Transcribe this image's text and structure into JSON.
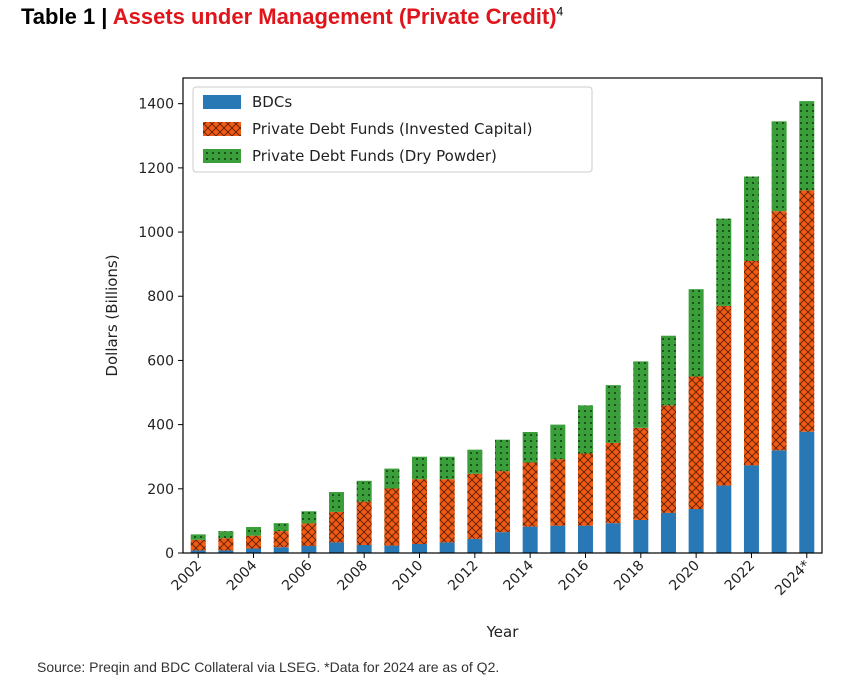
{
  "header": {
    "prefix": "Table 1 | ",
    "title": "Assets under Management (Private Credit)",
    "footnote_mark": "4"
  },
  "source_note": "Source: Preqin and BDC Collateral via LSEG. *Data for 2024 are as of Q2.",
  "colors": {
    "title_accent": "#e0151b",
    "bdcs": "#2878b5",
    "invested": "#f05a14",
    "dry_powder": "#3a9e3a"
  },
  "chart_data": {
    "type": "bar",
    "stacked": true,
    "xlabel": "Year",
    "ylabel": "Dollars (Billions)",
    "ylim": [
      0,
      1480
    ],
    "yticks": [
      0,
      200,
      400,
      600,
      800,
      1000,
      1200,
      1400
    ],
    "categories": [
      "2002",
      "2003",
      "2004",
      "2005",
      "2006",
      "2007",
      "2008",
      "2009",
      "2010",
      "2011",
      "2012",
      "2013",
      "2014",
      "2015",
      "2016",
      "2017",
      "2018",
      "2019",
      "2020",
      "2021",
      "2022",
      "2023",
      "2024*"
    ],
    "xtick_labels": [
      "2002",
      "2004",
      "2006",
      "2008",
      "2010",
      "2012",
      "2014",
      "2016",
      "2018",
      "2020",
      "2022",
      "2024*"
    ],
    "legend_position": "top-left",
    "grid": false,
    "series": [
      {
        "name": "BDCs",
        "pattern": "solid",
        "values": [
          8,
          8,
          14,
          18,
          22,
          33,
          25,
          23,
          28,
          33,
          44,
          65,
          82,
          85,
          85,
          93,
          103,
          125,
          137,
          210,
          273,
          320,
          378
        ]
      },
      {
        "name": "Private Debt Funds (Invested Capital)",
        "pattern": "crosshatch",
        "values": [
          33,
          38,
          40,
          50,
          70,
          95,
          135,
          178,
          202,
          197,
          203,
          190,
          200,
          207,
          225,
          250,
          287,
          335,
          413,
          560,
          637,
          745,
          752
        ]
      },
      {
        "name": "Private Debt Funds (Dry Powder)",
        "pattern": "dots",
        "values": [
          17,
          22,
          27,
          25,
          38,
          62,
          65,
          62,
          70,
          70,
          75,
          98,
          95,
          108,
          150,
          180,
          207,
          217,
          272,
          272,
          263,
          280,
          278
        ]
      }
    ]
  }
}
